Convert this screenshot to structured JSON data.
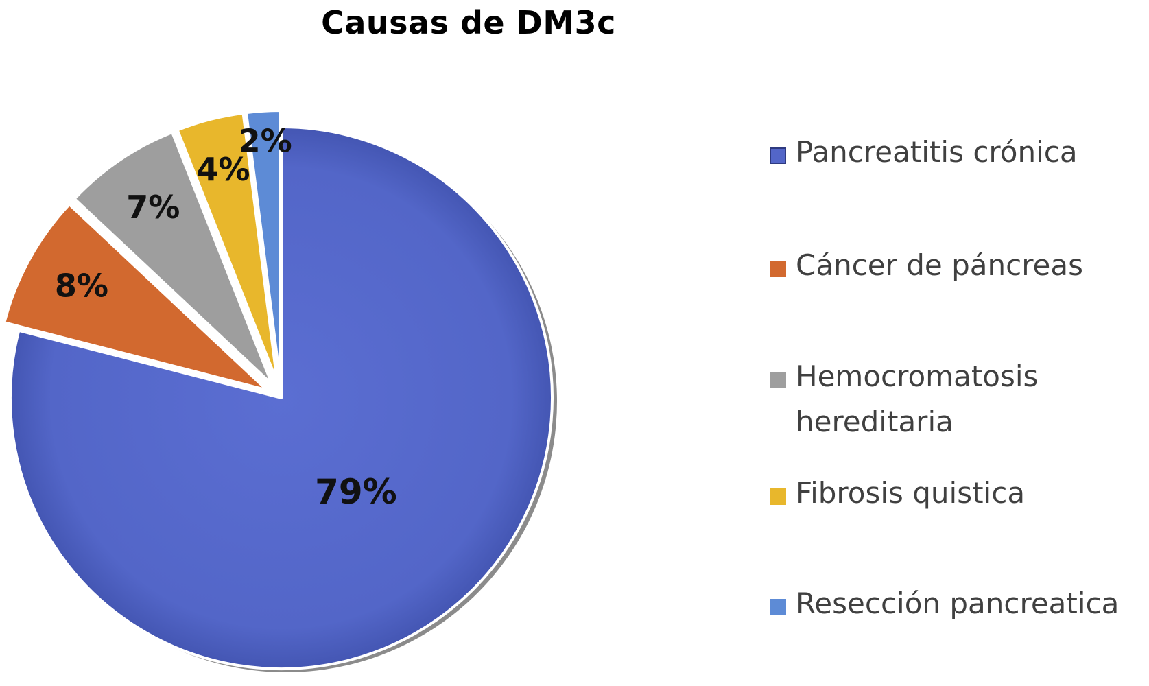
{
  "chart_data": {
    "type": "pie",
    "title": "Causas de DM3c",
    "start_angle_deg": 0,
    "direction": "clockwise",
    "legend_position": "right",
    "slices": [
      {
        "label": "Pancreatitis crónica",
        "value": 79,
        "data_label": "79%",
        "color": "#5366C8"
      },
      {
        "label": "Cáncer de páncreas",
        "value": 8,
        "data_label": "8%",
        "color": "#D2692F"
      },
      {
        "label": "Hemocromatosis\nhereditaria",
        "value": 7,
        "data_label": "7%",
        "color": "#9E9E9E"
      },
      {
        "label": "Fibrosis quistica",
        "value": 4,
        "data_label": "4%",
        "color": "#E8B72C"
      },
      {
        "label": "Resección pancreatica",
        "value": 2,
        "data_label": "2%",
        "color": "#5D8BD6"
      }
    ]
  }
}
